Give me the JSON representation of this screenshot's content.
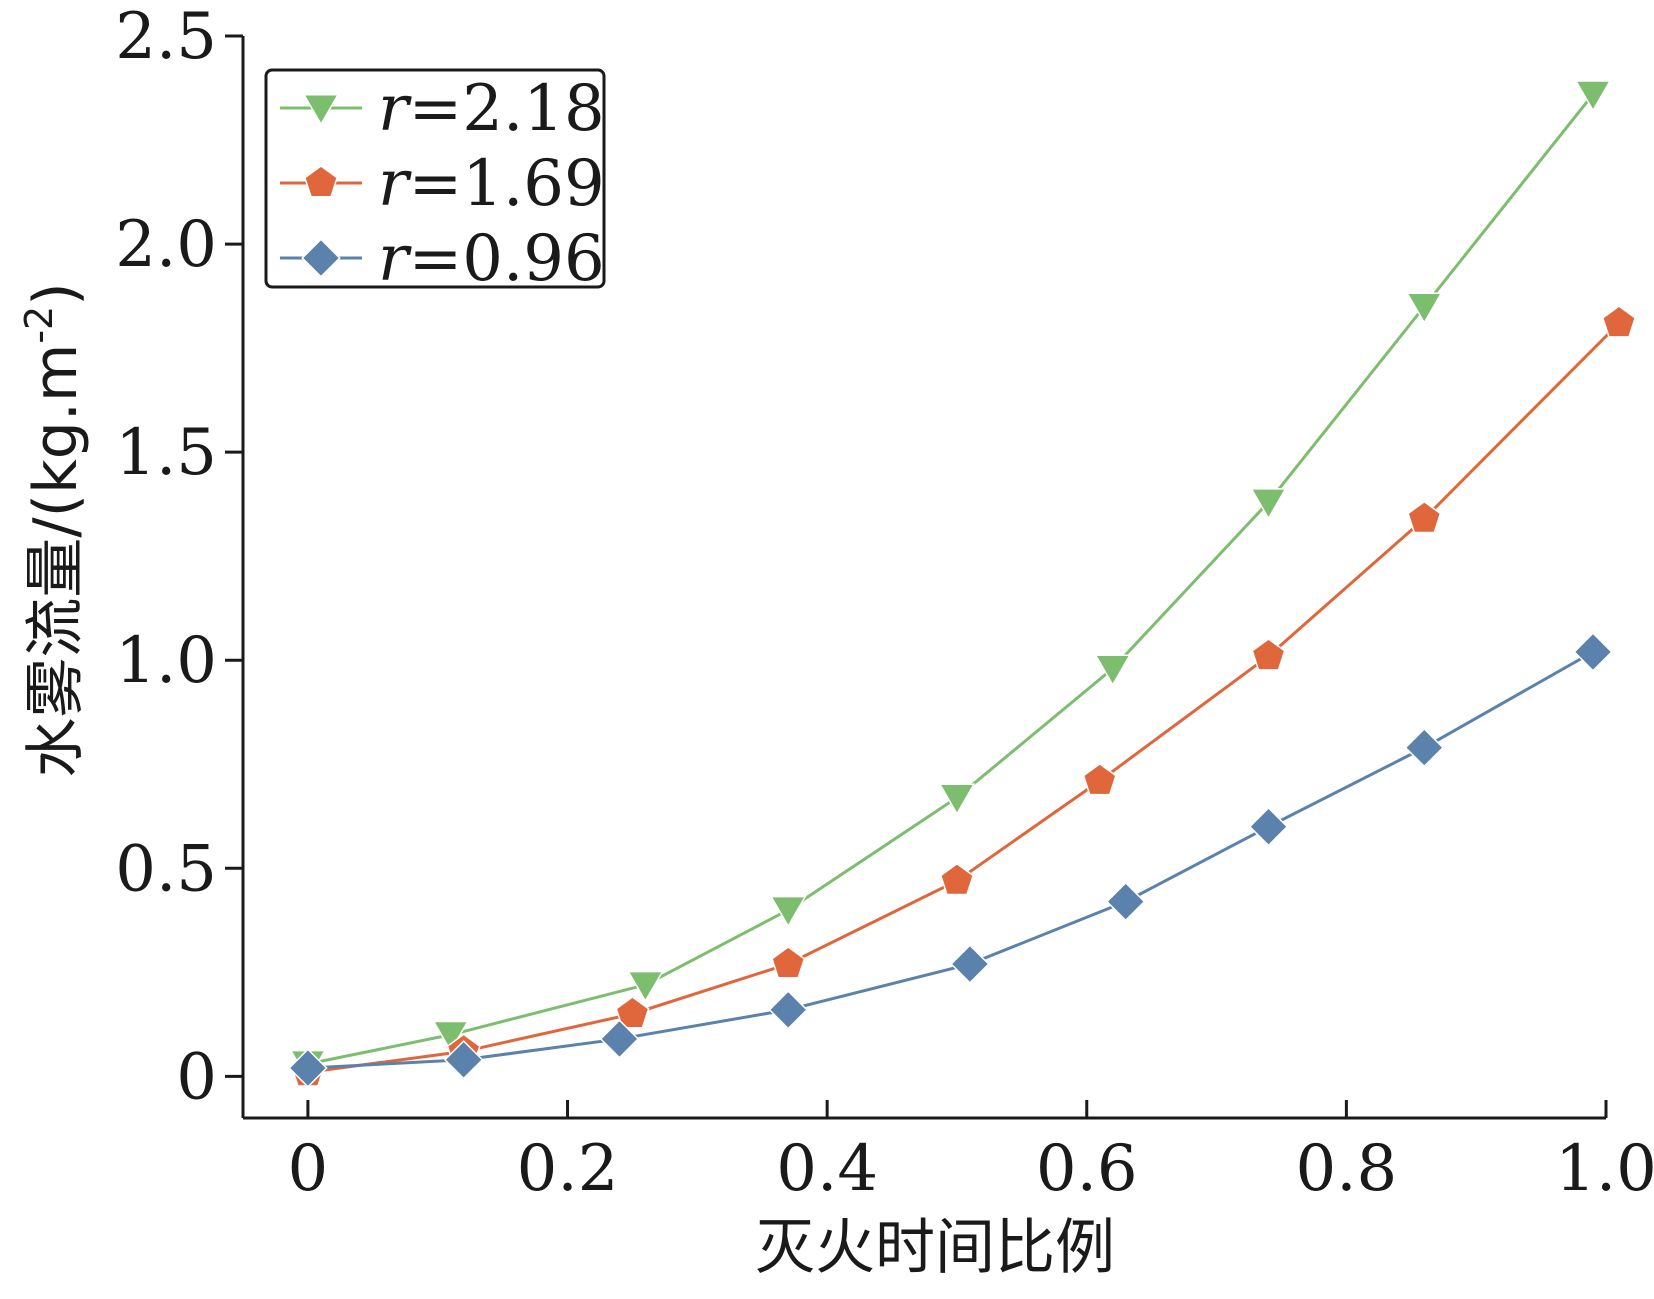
{
  "chart_data": {
    "type": "line",
    "title": "",
    "xlabel": "灭火时间比例",
    "ylabel": "水雾流量/(kg.m",
    "ylabel_sup": "-2",
    "ylabel_close": ")",
    "xlim": [
      -0.05,
      1.0
    ],
    "ylim": [
      -0.1,
      2.5
    ],
    "xticks": [
      0,
      0.2,
      0.4,
      0.6,
      0.8,
      1.0
    ],
    "xtick_labels": [
      "0",
      "0.2",
      "0.4",
      "0.6",
      "0.8",
      "1.0"
    ],
    "yticks": [
      0,
      0.5,
      1.0,
      1.5,
      2.0,
      2.5
    ],
    "ytick_labels": [
      "0",
      "0.5",
      "1.0",
      "1.5",
      "2.0",
      "2.5"
    ],
    "grid": false,
    "legend_position": "top-left",
    "series": [
      {
        "name": "=2.18",
        "name_var": "r",
        "color": "#7dbe6e",
        "marker": "triangle-down",
        "x": [
          0.0,
          0.11,
          0.26,
          0.37,
          0.5,
          0.62,
          0.74,
          0.86,
          0.99
        ],
        "y": [
          0.03,
          0.1,
          0.22,
          0.4,
          0.67,
          0.98,
          1.38,
          1.85,
          2.36
        ]
      },
      {
        "name": "=1.69",
        "name_var": "r",
        "color": "#e0673b",
        "marker": "pentagon",
        "x": [
          0.0,
          0.12,
          0.25,
          0.37,
          0.5,
          0.61,
          0.74,
          0.86,
          1.01
        ],
        "y": [
          0.01,
          0.06,
          0.15,
          0.27,
          0.47,
          0.71,
          1.01,
          1.34,
          1.81
        ]
      },
      {
        "name": "=0.96",
        "name_var": "r",
        "color": "#5a82ac",
        "marker": "diamond",
        "x": [
          0.0,
          0.12,
          0.24,
          0.37,
          0.51,
          0.63,
          0.74,
          0.86,
          0.99
        ],
        "y": [
          0.02,
          0.04,
          0.09,
          0.16,
          0.27,
          0.42,
          0.6,
          0.79,
          1.02
        ]
      }
    ]
  }
}
